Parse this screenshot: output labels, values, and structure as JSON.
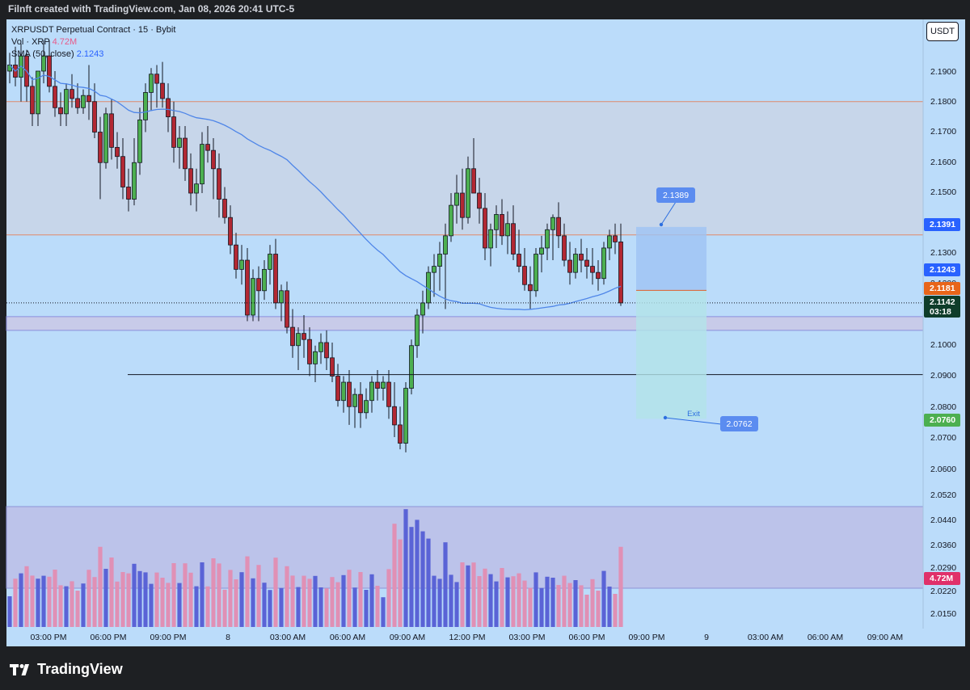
{
  "header": {
    "attribution": "Filnft created with TradingView.com, Jan 08, 2026 20:41 UTC-5"
  },
  "legend": {
    "symbol": "XRPUSDT Perpetual Contract · 15 · Bybit",
    "vol_label": "Vol · XRP",
    "vol_value": "4.72M",
    "sma_label": "SMA (50, close)",
    "sma_value": "2.1243"
  },
  "currency_button": "USDT",
  "branding": {
    "logo_text": "TradingView"
  },
  "colors": {
    "background": "#bbdcfa",
    "up": "#4caf50",
    "down": "#b22833",
    "vol_up": "#5a63d6",
    "vol_down": "#e090b5",
    "sma": "#4f86e8",
    "resistance": "#e0896b",
    "zone": "#c8cbe9"
  },
  "price_axis": {
    "labels": [
      "2.1900",
      "2.1800",
      "2.1700",
      "2.1600",
      "2.1500",
      "2.1300",
      "2.1200",
      "2.1000",
      "2.0900",
      "2.0800",
      "2.0700",
      "2.0600",
      "2.0520",
      "2.0440",
      "2.0360",
      "2.0290",
      "2.0220",
      "2.0150"
    ]
  },
  "time_axis": {
    "labels": [
      "03:00 PM",
      "06:00 PM",
      "09:00 PM",
      "8",
      "03:00 AM",
      "06:00 AM",
      "09:00 AM",
      "12:00 PM",
      "03:00 PM",
      "06:00 PM",
      "09:00 PM",
      "9",
      "03:00 AM",
      "06:00 AM",
      "09:00 AM"
    ]
  },
  "axis_badges": {
    "resistance": "2.1391",
    "sma": "2.1243",
    "orange_line": "2.1181",
    "last_price": "2.1142",
    "countdown": "03:18",
    "target": "2.0760",
    "volume": "4.72M"
  },
  "annotations": {
    "entry_callout": "2.1389",
    "exit_label": "Exit",
    "exit_callout": "2.0762"
  },
  "chart_data": {
    "type": "candlestick",
    "interval": "15",
    "price_range": [
      2.012,
      2.2
    ],
    "levels": {
      "resistance_top": 2.18,
      "resistance_bottom": 2.1363,
      "support_zone": [
        2.105,
        2.1095
      ],
      "black_line": 2.0905,
      "orange_line": 2.1181
    },
    "position": {
      "type": "short",
      "entry": 2.1389,
      "stop_line": 2.1181,
      "target": 2.076
    },
    "ohlc": [
      [
        2.19,
        2.196,
        2.186,
        2.192
      ],
      [
        2.192,
        2.198,
        2.185,
        2.188
      ],
      [
        2.188,
        2.199,
        2.18,
        2.195
      ],
      [
        2.195,
        2.197,
        2.18,
        2.185
      ],
      [
        2.185,
        2.188,
        2.172,
        2.176
      ],
      [
        2.176,
        2.19,
        2.172,
        2.19
      ],
      [
        2.19,
        2.2,
        2.186,
        2.195
      ],
      [
        2.195,
        2.2,
        2.183,
        2.185
      ],
      [
        2.185,
        2.19,
        2.175,
        2.178
      ],
      [
        2.178,
        2.183,
        2.172,
        2.176
      ],
      [
        2.176,
        2.186,
        2.172,
        2.184
      ],
      [
        2.184,
        2.189,
        2.178,
        2.181
      ],
      [
        2.181,
        2.186,
        2.176,
        2.178
      ],
      [
        2.178,
        2.184,
        2.176,
        2.182
      ],
      [
        2.182,
        2.192,
        2.174,
        2.18
      ],
      [
        2.18,
        2.186,
        2.168,
        2.17
      ],
      [
        2.17,
        2.175,
        2.148,
        2.16
      ],
      [
        2.16,
        2.178,
        2.158,
        2.176
      ],
      [
        2.176,
        2.181,
        2.161,
        2.165
      ],
      [
        2.165,
        2.17,
        2.158,
        2.162
      ],
      [
        2.162,
        2.168,
        2.148,
        2.152
      ],
      [
        2.152,
        2.158,
        2.144,
        2.148
      ],
      [
        2.148,
        2.168,
        2.146,
        2.16
      ],
      [
        2.16,
        2.178,
        2.156,
        2.174
      ],
      [
        2.174,
        2.186,
        2.17,
        2.183
      ],
      [
        2.183,
        2.191,
        2.177,
        2.189
      ],
      [
        2.189,
        2.192,
        2.178,
        2.186
      ],
      [
        2.186,
        2.193,
        2.178,
        2.181
      ],
      [
        2.181,
        2.186,
        2.17,
        2.175
      ],
      [
        2.175,
        2.18,
        2.16,
        2.165
      ],
      [
        2.165,
        2.172,
        2.158,
        2.168
      ],
      [
        2.168,
        2.172,
        2.154,
        2.158
      ],
      [
        2.158,
        2.163,
        2.146,
        2.15
      ],
      [
        2.15,
        2.158,
        2.144,
        2.153
      ],
      [
        2.153,
        2.17,
        2.15,
        2.166
      ],
      [
        2.166,
        2.172,
        2.16,
        2.164
      ],
      [
        2.164,
        2.168,
        2.148,
        2.158
      ],
      [
        2.158,
        2.163,
        2.142,
        2.148
      ],
      [
        2.148,
        2.152,
        2.14,
        2.142
      ],
      [
        2.142,
        2.146,
        2.13,
        2.133
      ],
      [
        2.133,
        2.137,
        2.122,
        2.125
      ],
      [
        2.125,
        2.133,
        2.12,
        2.128
      ],
      [
        2.128,
        2.132,
        2.108,
        2.11
      ],
      [
        2.11,
        2.125,
        2.108,
        2.122
      ],
      [
        2.122,
        2.126,
        2.108,
        2.118
      ],
      [
        2.118,
        2.128,
        2.115,
        2.125
      ],
      [
        2.125,
        2.133,
        2.12,
        2.13
      ],
      [
        2.13,
        2.135,
        2.112,
        2.114
      ],
      [
        2.114,
        2.12,
        2.108,
        2.118
      ],
      [
        2.118,
        2.121,
        2.104,
        2.106
      ],
      [
        2.106,
        2.112,
        2.096,
        2.1
      ],
      [
        2.1,
        2.106,
        2.092,
        2.104
      ],
      [
        2.104,
        2.11,
        2.096,
        2.102
      ],
      [
        2.102,
        2.106,
        2.09,
        2.094
      ],
      [
        2.094,
        2.1,
        2.088,
        2.098
      ],
      [
        2.098,
        2.104,
        2.094,
        2.101
      ],
      [
        2.101,
        2.105,
        2.092,
        2.096
      ],
      [
        2.096,
        2.101,
        2.088,
        2.09
      ],
      [
        2.09,
        2.094,
        2.08,
        2.082
      ],
      [
        2.082,
        2.09,
        2.078,
        2.088
      ],
      [
        2.088,
        2.092,
        2.074,
        2.08
      ],
      [
        2.08,
        2.086,
        2.073,
        2.084
      ],
      [
        2.084,
        2.088,
        2.073,
        2.078
      ],
      [
        2.078,
        2.086,
        2.076,
        2.082
      ],
      [
        2.082,
        2.09,
        2.078,
        2.088
      ],
      [
        2.088,
        2.092,
        2.082,
        2.086
      ],
      [
        2.086,
        2.09,
        2.082,
        2.088
      ],
      [
        2.088,
        2.092,
        2.076,
        2.08
      ],
      [
        2.08,
        2.088,
        2.07,
        2.074
      ],
      [
        2.074,
        2.08,
        2.066,
        2.068
      ],
      [
        2.068,
        2.088,
        2.065,
        2.086
      ],
      [
        2.086,
        2.102,
        2.084,
        2.1
      ],
      [
        2.1,
        2.112,
        2.096,
        2.11
      ],
      [
        2.11,
        2.118,
        2.104,
        2.114
      ],
      [
        2.114,
        2.126,
        2.112,
        2.124
      ],
      [
        2.124,
        2.13,
        2.116,
        2.126
      ],
      [
        2.126,
        2.134,
        2.118,
        2.13
      ],
      [
        2.13,
        2.14,
        2.112,
        2.136
      ],
      [
        2.136,
        2.15,
        2.134,
        2.146
      ],
      [
        2.146,
        2.156,
        2.14,
        2.15
      ],
      [
        2.15,
        2.158,
        2.138,
        2.142
      ],
      [
        2.142,
        2.162,
        2.14,
        2.158
      ],
      [
        2.158,
        2.168,
        2.15,
        2.15
      ],
      [
        2.15,
        2.155,
        2.14,
        2.145
      ],
      [
        2.145,
        2.15,
        2.128,
        2.132
      ],
      [
        2.132,
        2.14,
        2.126,
        2.138
      ],
      [
        2.138,
        2.146,
        2.132,
        2.143
      ],
      [
        2.143,
        2.148,
        2.133,
        2.136
      ],
      [
        2.136,
        2.144,
        2.13,
        2.14
      ],
      [
        2.14,
        2.146,
        2.128,
        2.13
      ],
      [
        2.13,
        2.138,
        2.124,
        2.126
      ],
      [
        2.126,
        2.132,
        2.118,
        2.12
      ],
      [
        2.12,
        2.126,
        2.112,
        2.118
      ],
      [
        2.118,
        2.132,
        2.116,
        2.13
      ],
      [
        2.13,
        2.136,
        2.124,
        2.132
      ],
      [
        2.132,
        2.14,
        2.128,
        2.138
      ],
      [
        2.138,
        2.143,
        2.128,
        2.142
      ],
      [
        2.142,
        2.147,
        2.132,
        2.136
      ],
      [
        2.136,
        2.14,
        2.126,
        2.128
      ],
      [
        2.128,
        2.134,
        2.12,
        2.124
      ],
      [
        2.124,
        2.132,
        2.122,
        2.13
      ],
      [
        2.13,
        2.135,
        2.124,
        2.128
      ],
      [
        2.128,
        2.132,
        2.122,
        2.126
      ],
      [
        2.126,
        2.132,
        2.12,
        2.124
      ],
      [
        2.124,
        2.128,
        2.118,
        2.122
      ],
      [
        2.122,
        2.134,
        2.12,
        2.132
      ],
      [
        2.132,
        2.138,
        2.128,
        2.136
      ],
      [
        2.136,
        2.14,
        2.13,
        2.134
      ],
      [
        2.134,
        2.14,
        2.113,
        2.114
      ]
    ],
    "volume_ticks": [
      2.052,
      2.044,
      2.036,
      2.029,
      2.022,
      2.015
    ]
  }
}
